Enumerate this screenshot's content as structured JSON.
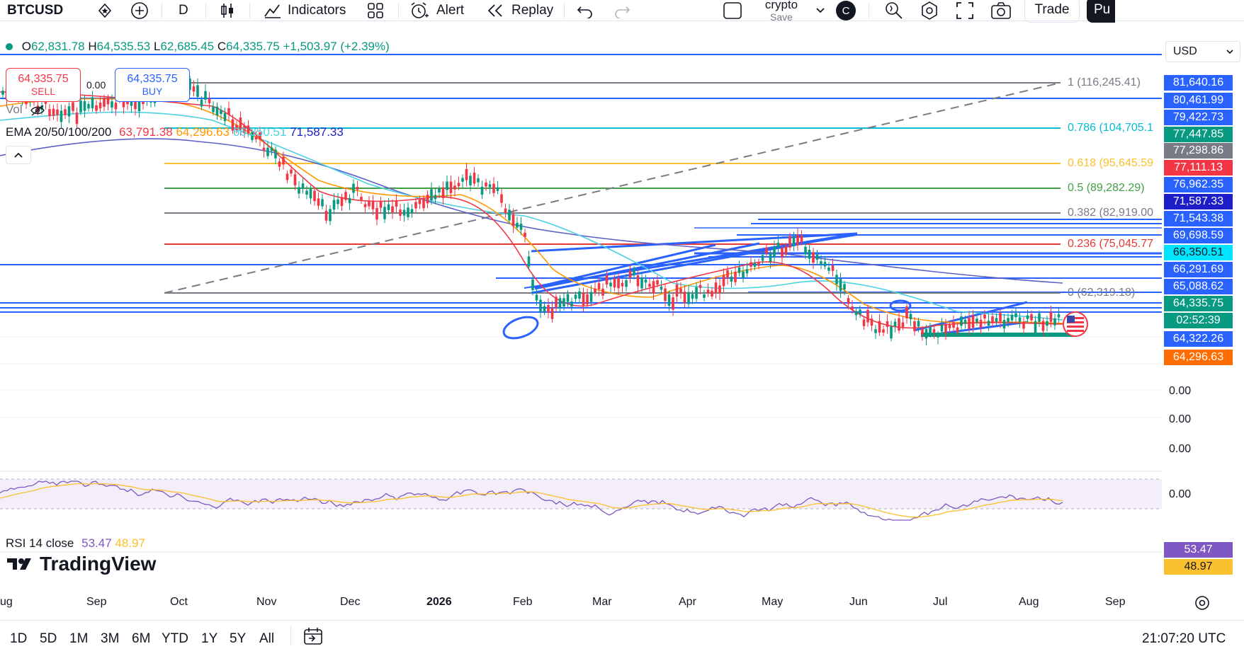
{
  "toolbar": {
    "symbol": "BTCUSD",
    "interval": "D",
    "indicators_label": "Indicators",
    "alert_label": "Alert",
    "replay_label": "Replay",
    "layout_name": "crypto",
    "layout_save": "Save",
    "avatar_letter": "C",
    "trade_label": "Trade",
    "publish_label": "Pu"
  },
  "ohlc": {
    "open": "62,831.78",
    "high": "64,535.53",
    "low": "62,685.45",
    "close": "64,335.75",
    "change": "+1,503.97 (+2.39%)"
  },
  "trade": {
    "sell_price": "64,335.75",
    "sell_label": "SELL",
    "spread": "0.00",
    "buy_price": "64,335.75",
    "buy_label": "BUY"
  },
  "vol_label": "Vol",
  "ema": {
    "label": "EMA 20/50/100/200",
    "v20": "63,791.38",
    "v50": "64,296.63",
    "v100": "66,350.51",
    "v200": "71,587.33"
  },
  "currency": "USD",
  "fib_levels": [
    {
      "text": "1 (116,245.41)"
    },
    {
      "text": "0.786 (104,705.1"
    },
    {
      "text": "0.618 (95,645.59"
    },
    {
      "text": "0.5 (89,282.29)"
    },
    {
      "text": "0.382 (82,919.00"
    },
    {
      "text": "0.236 (75,045.77"
    },
    {
      "text": "0 (62,319.18)"
    }
  ],
  "price_labels": [
    {
      "text": "81,640.16",
      "bg": "#2962ff"
    },
    {
      "text": "80,461.99",
      "bg": "#2962ff"
    },
    {
      "text": "79,422.73",
      "bg": "#2962ff"
    },
    {
      "text": "77,447.85",
      "bg": "#089981"
    },
    {
      "text": "77,298.86",
      "bg": "#787b86"
    },
    {
      "text": "77,111.13",
      "bg": "#f23645"
    },
    {
      "text": "76,962.35",
      "bg": "#2962ff"
    },
    {
      "text": "71,587.33",
      "bg": "#1e1ec8"
    },
    {
      "text": "71,543.38",
      "bg": "#2962ff"
    },
    {
      "text": "69,698.59",
      "bg": "#2962ff"
    },
    {
      "text": "66,350.51",
      "bg": "#00e5ff"
    },
    {
      "text": "66,291.69",
      "bg": "#2962ff"
    },
    {
      "text": "65,088.62",
      "bg": "#2962ff"
    },
    {
      "text": "64,335.75",
      "bg": "#089981"
    },
    {
      "text": "02:52:39",
      "bg": "#089981"
    },
    {
      "text": "64,322.26",
      "bg": "#2962ff"
    },
    {
      "text": "64,296.63",
      "bg": "#ff6d00"
    }
  ],
  "zero_labels": [
    "0.00",
    "0.00",
    "0.00",
    "0.00"
  ],
  "rsi": {
    "label": "RSI 14 close",
    "value": "53.47",
    "ma": "48.97"
  },
  "brand": "TradingView",
  "time_axis": [
    "ug",
    "Sep",
    "Oct",
    "Nov",
    "Dec",
    "2026",
    "Feb",
    "Mar",
    "Apr",
    "May",
    "Jun",
    "Jul",
    "Aug",
    "Sep"
  ],
  "ranges": [
    "1D",
    "5D",
    "1M",
    "3M",
    "6M",
    "YTD",
    "1Y",
    "5Y",
    "All"
  ],
  "clock": "21:07:20 UTC",
  "colors": {
    "up": "#089981",
    "down": "#f23645",
    "ema20": "#f23645",
    "ema50": "#ff9800",
    "ema100": "#4dd0e1",
    "ema200": "#5b5fc7",
    "rsi": "#7e57c2",
    "rsi_ma": "#fbc02d"
  }
}
